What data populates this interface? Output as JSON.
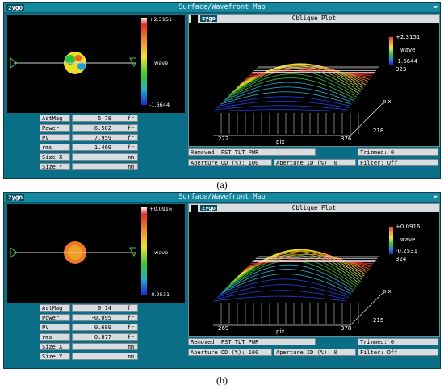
{
  "panels": [
    {
      "window_title": "Surface/Wavefront Map",
      "logo": "zygo",
      "pin_icon": "pin-icon",
      "map": {
        "max": "+2.3151",
        "min": "-1.6644",
        "unit": "wave"
      },
      "stats": [
        {
          "label": "AstMag",
          "value": "5.78",
          "unit": "fr"
        },
        {
          "label": "Power",
          "value": "-6.582",
          "unit": "fr"
        },
        {
          "label": "PV",
          "value": "7.959",
          "unit": "fr"
        },
        {
          "label": "rms",
          "value": "1.469",
          "unit": "fr"
        },
        {
          "label": "Size X",
          "value": "",
          "unit": "mm"
        },
        {
          "label": "Size Y",
          "value": "",
          "unit": "mm"
        }
      ],
      "plot": {
        "title": "Oblique Plot",
        "logo": "zygo",
        "max": "+2.3151",
        "unit": "wave",
        "min": "-1.6644",
        "extra": "323",
        "x_start": "272",
        "x_end": "376",
        "x_label": "pix",
        "y_label": "pix",
        "y_value": "218"
      },
      "removed": "Removed: PST TLT PWR",
      "trimmed": "Trimmed:   0",
      "aperture_od": "Aperture OD (%): 100",
      "aperture_id": "Aperture ID (%):   0",
      "filter": "Filter:     Off",
      "caption": "(a)"
    },
    {
      "window_title": "Surface/Wavefront Map",
      "logo": "zygo",
      "pin_icon": "pin-icon",
      "map": {
        "max": "+0.0916",
        "min": "-0.2531",
        "unit": "wave"
      },
      "stats": [
        {
          "label": "AstMag",
          "value": "0.14",
          "unit": "fr"
        },
        {
          "label": "Power",
          "value": "-0.095",
          "unit": "fr"
        },
        {
          "label": "PV",
          "value": "0.689",
          "unit": "fr"
        },
        {
          "label": "rms",
          "value": "0.077",
          "unit": "fr"
        },
        {
          "label": "Size X",
          "value": "",
          "unit": "mm"
        },
        {
          "label": "Size Y",
          "value": "",
          "unit": "mm"
        }
      ],
      "plot": {
        "title": "Oblique Plot",
        "logo": "zygo",
        "max": "+0.0916",
        "unit": "wave",
        "min": "-0.2531",
        "extra": "324",
        "x_start": "269",
        "x_end": "378",
        "x_label": "pix",
        "y_label": "pix",
        "y_value": "215"
      },
      "removed": "Removed: PST TLT PWR",
      "trimmed": "Trimmed:  0",
      "aperture_od": "Aperture OD (%): 100",
      "aperture_id": "Aperture ID (%):   0",
      "filter": "Filter:     Off",
      "caption": "(b)"
    }
  ]
}
